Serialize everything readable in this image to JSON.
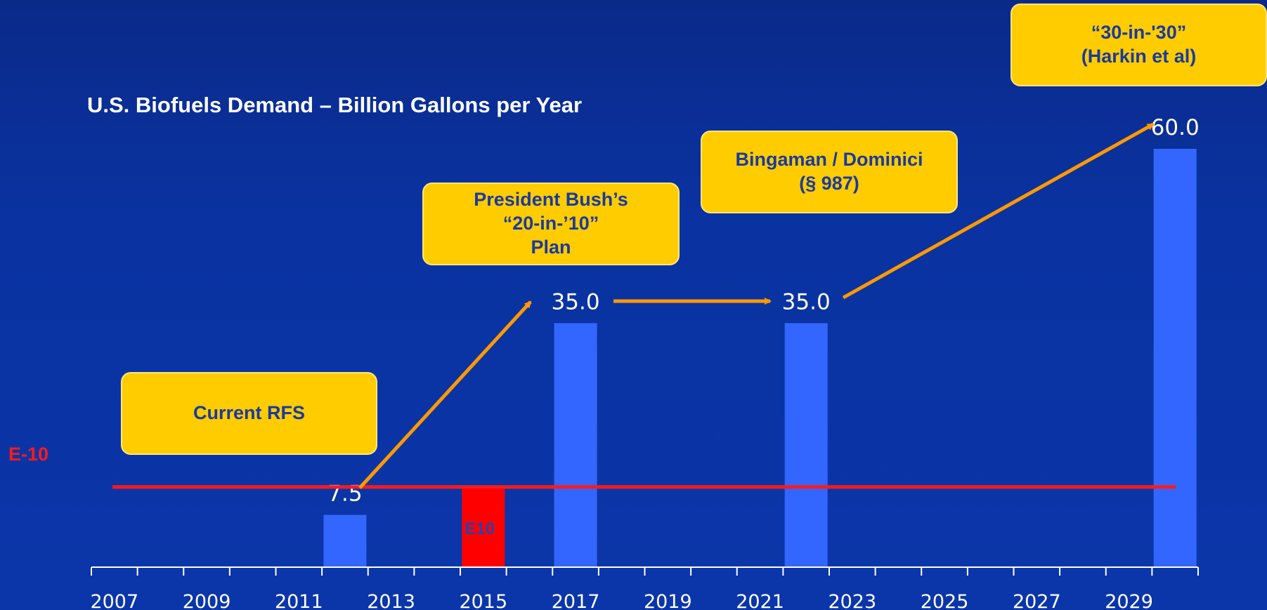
{
  "title": "U.S. Biofuels Demand – Billion Gallons per Year",
  "e10_line_label": "E-10",
  "callouts": {
    "current_rfs": "Current RFS",
    "bush_plan": "President Bush’s\n“20-in-’10”\nPlan",
    "bingaman": "Bingaman / Dominici\n(§ 987)",
    "harkin": "“30-in-'30”\n(Harkin et al)"
  },
  "colors": {
    "background": "#0b36aa",
    "bar": "#3366ff",
    "e10_bar": "#ff0000",
    "e10_line": "#ff1a1a",
    "arrow": "#ff9900",
    "callout_fill": "#ffcc00",
    "callout_text": "#1a3a9e",
    "text": "#ffffff"
  },
  "chart_data": {
    "type": "bar",
    "title": "U.S. Biofuels Demand – Billion Gallons per Year",
    "x_ticks": [
      "2007",
      "2009",
      "2011",
      "2013",
      "2015",
      "2017",
      "2019",
      "2021",
      "2023",
      "2025",
      "2027",
      "2029"
    ],
    "xlim": [
      2007,
      2031
    ],
    "ylim": [
      0,
      60
    ],
    "grid": false,
    "bars": [
      {
        "x": 2012,
        "value": 7.5,
        "label": "7.5"
      },
      {
        "x": 2015,
        "value": 11.5,
        "label": "E10",
        "highlight": true
      },
      {
        "x": 2017,
        "value": 35.0,
        "label": "35.0"
      },
      {
        "x": 2022,
        "value": 35.0,
        "label": "35.0"
      },
      {
        "x": 2030,
        "value": 60.0,
        "label": "60.0"
      }
    ],
    "e10_threshold": 11.5
  }
}
